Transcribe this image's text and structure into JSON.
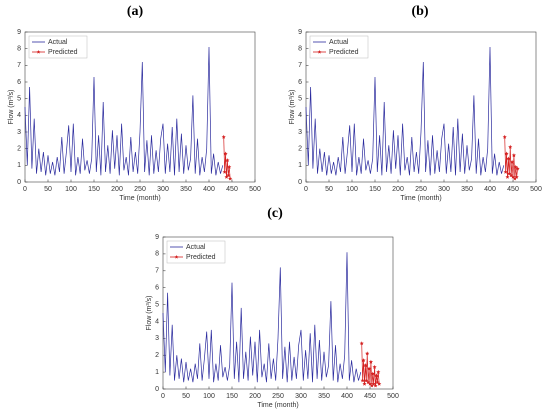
{
  "chart_data": [
    {
      "type": "line",
      "title": "(a)",
      "xlabel": "Time (month)",
      "ylabel": "Flow (m³/s)",
      "xlim": [
        0,
        500
      ],
      "xticks": [
        0,
        50,
        100,
        150,
        200,
        250,
        300,
        350,
        400,
        450,
        500
      ],
      "ylim": [
        0,
        9
      ],
      "yticks": [
        0,
        1,
        2,
        3,
        4,
        5,
        6,
        7,
        8,
        9
      ],
      "legend": "upper left",
      "series": [
        {
          "name": "Actual",
          "color": "#2b2b9e",
          "x": [
            0,
            5,
            10,
            15,
            20,
            25,
            30,
            35,
            40,
            45,
            50,
            55,
            60,
            65,
            70,
            75,
            80,
            85,
            90,
            95,
            100,
            105,
            110,
            115,
            120,
            125,
            130,
            135,
            140,
            145,
            150,
            155,
            160,
            165,
            170,
            175,
            180,
            185,
            190,
            195,
            200,
            205,
            210,
            215,
            220,
            225,
            230,
            235,
            240,
            245,
            250,
            255,
            260,
            265,
            270,
            275,
            280,
            285,
            290,
            295,
            300,
            305,
            310,
            315,
            320,
            325,
            330,
            335,
            340,
            345,
            350,
            355,
            360,
            365,
            370,
            375,
            380,
            385,
            390,
            395,
            400,
            405,
            410,
            415,
            420,
            425,
            430
          ],
          "values": [
            4.5,
            1.0,
            5.7,
            0.8,
            3.8,
            0.5,
            2.0,
            0.6,
            1.8,
            0.4,
            1.6,
            0.5,
            1.2,
            0.4,
            1.5,
            0.6,
            2.7,
            0.5,
            1.8,
            3.4,
            0.6,
            3.5,
            0.4,
            1.5,
            0.5,
            2.6,
            0.7,
            1.3,
            0.5,
            1.4,
            6.3,
            0.6,
            2.8,
            0.4,
            4.8,
            0.6,
            2.2,
            0.5,
            3.1,
            0.8,
            2.8,
            0.4,
            3.5,
            0.7,
            1.5,
            0.4,
            2.7,
            0.6,
            1.8,
            0.5,
            3.0,
            7.2,
            0.6,
            2.5,
            0.4,
            2.8,
            0.5,
            1.9,
            0.6,
            2.6,
            3.5,
            0.5,
            2.3,
            0.6,
            3.3,
            0.4,
            3.8,
            0.6,
            2.9,
            0.5,
            2.2,
            0.7,
            1.4,
            5.2,
            0.5,
            2.6,
            0.4,
            1.5,
            0.6,
            2.0,
            8.1,
            0.5,
            1.7,
            0.4,
            1.2,
            0.5,
            1.0
          ]
        },
        {
          "name": "Predicted",
          "color": "#d42020",
          "x": [
            432,
            434,
            436,
            438,
            440,
            442,
            444,
            446
          ],
          "values": [
            2.7,
            0.6,
            1.7,
            0.3,
            1.3,
            0.4,
            0.9,
            0.2
          ]
        }
      ]
    },
    {
      "type": "line",
      "title": "(b)",
      "xlabel": "Time (month)",
      "ylabel": "Flow (m³/s)",
      "xlim": [
        0,
        500
      ],
      "xticks": [
        0,
        50,
        100,
        150,
        200,
        250,
        300,
        350,
        400,
        450,
        500
      ],
      "ylim": [
        0,
        9
      ],
      "yticks": [
        0,
        1,
        2,
        3,
        4,
        5,
        6,
        7,
        8,
        9
      ],
      "legend": "upper left",
      "series": [
        {
          "name": "Actual",
          "color": "#2b2b9e",
          "x": [
            0,
            5,
            10,
            15,
            20,
            25,
            30,
            35,
            40,
            45,
            50,
            55,
            60,
            65,
            70,
            75,
            80,
            85,
            90,
            95,
            100,
            105,
            110,
            115,
            120,
            125,
            130,
            135,
            140,
            145,
            150,
            155,
            160,
            165,
            170,
            175,
            180,
            185,
            190,
            195,
            200,
            205,
            210,
            215,
            220,
            225,
            230,
            235,
            240,
            245,
            250,
            255,
            260,
            265,
            270,
            275,
            280,
            285,
            290,
            295,
            300,
            305,
            310,
            315,
            320,
            325,
            330,
            335,
            340,
            345,
            350,
            355,
            360,
            365,
            370,
            375,
            380,
            385,
            390,
            395,
            400,
            405,
            410,
            415,
            420,
            425,
            430
          ],
          "values": [
            4.5,
            1.0,
            5.7,
            0.8,
            3.8,
            0.5,
            2.0,
            0.6,
            1.8,
            0.4,
            1.6,
            0.5,
            1.2,
            0.4,
            1.5,
            0.6,
            2.7,
            0.5,
            1.8,
            3.4,
            0.6,
            3.5,
            0.4,
            1.5,
            0.5,
            2.6,
            0.7,
            1.3,
            0.5,
            1.4,
            6.3,
            0.6,
            2.8,
            0.4,
            4.8,
            0.6,
            2.2,
            0.5,
            3.1,
            0.8,
            2.8,
            0.4,
            3.5,
            0.7,
            1.5,
            0.4,
            2.7,
            0.6,
            1.8,
            0.5,
            3.0,
            7.2,
            0.6,
            2.5,
            0.4,
            2.8,
            0.5,
            1.9,
            0.6,
            2.6,
            3.5,
            0.5,
            2.3,
            0.6,
            3.3,
            0.4,
            3.8,
            0.6,
            2.9,
            0.5,
            2.2,
            0.7,
            1.4,
            5.2,
            0.5,
            2.6,
            0.4,
            1.5,
            0.6,
            2.0,
            8.1,
            0.5,
            1.7,
            0.4,
            1.2,
            0.5,
            1.0
          ]
        },
        {
          "name": "Predicted",
          "color": "#d42020",
          "x": [
            432,
            434,
            436,
            438,
            440,
            442,
            444,
            446,
            448,
            450,
            452,
            454,
            456,
            458,
            460
          ],
          "values": [
            2.7,
            0.6,
            1.7,
            0.3,
            1.4,
            0.5,
            2.1,
            0.4,
            1.2,
            0.3,
            1.6,
            0.2,
            0.9,
            0.3,
            0.8
          ]
        }
      ]
    },
    {
      "type": "line",
      "title": "(c)",
      "xlabel": "Time (month)",
      "ylabel": "Flow (m³/s)",
      "xlim": [
        0,
        500
      ],
      "xticks": [
        0,
        50,
        100,
        150,
        200,
        250,
        300,
        350,
        400,
        450,
        500
      ],
      "ylim": [
        0,
        9
      ],
      "yticks": [
        0,
        1,
        2,
        3,
        4,
        5,
        6,
        7,
        8,
        9
      ],
      "legend": "upper left",
      "series": [
        {
          "name": "Actual",
          "color": "#2b2b9e",
          "x": [
            0,
            5,
            10,
            15,
            20,
            25,
            30,
            35,
            40,
            45,
            50,
            55,
            60,
            65,
            70,
            75,
            80,
            85,
            90,
            95,
            100,
            105,
            110,
            115,
            120,
            125,
            130,
            135,
            140,
            145,
            150,
            155,
            160,
            165,
            170,
            175,
            180,
            185,
            190,
            195,
            200,
            205,
            210,
            215,
            220,
            225,
            230,
            235,
            240,
            245,
            250,
            255,
            260,
            265,
            270,
            275,
            280,
            285,
            290,
            295,
            300,
            305,
            310,
            315,
            320,
            325,
            330,
            335,
            340,
            345,
            350,
            355,
            360,
            365,
            370,
            375,
            380,
            385,
            390,
            395,
            400,
            405,
            410,
            415,
            420,
            425,
            430
          ],
          "values": [
            4.5,
            1.0,
            5.7,
            0.8,
            3.8,
            0.5,
            2.0,
            0.6,
            1.8,
            0.4,
            1.6,
            0.5,
            1.2,
            0.4,
            1.5,
            0.6,
            2.7,
            0.5,
            1.8,
            3.4,
            0.6,
            3.5,
            0.4,
            1.5,
            0.5,
            2.6,
            0.7,
            1.3,
            0.5,
            1.4,
            6.3,
            0.6,
            2.8,
            0.4,
            4.8,
            0.6,
            2.2,
            0.5,
            3.1,
            0.8,
            2.8,
            0.4,
            3.5,
            0.7,
            1.5,
            0.4,
            2.7,
            0.6,
            1.8,
            0.5,
            3.0,
            7.2,
            0.6,
            2.5,
            0.4,
            2.8,
            0.5,
            1.9,
            0.6,
            2.6,
            3.5,
            0.5,
            2.3,
            0.6,
            3.3,
            0.4,
            3.8,
            0.6,
            2.9,
            0.5,
            2.2,
            0.7,
            1.4,
            5.2,
            0.5,
            2.6,
            0.4,
            1.5,
            0.6,
            2.0,
            8.1,
            0.5,
            1.7,
            0.4,
            1.2,
            0.5,
            1.0
          ]
        },
        {
          "name": "Predicted",
          "color": "#d42020",
          "x": [
            432,
            434,
            436,
            438,
            440,
            442,
            444,
            446,
            448,
            450,
            452,
            454,
            456,
            458,
            460,
            462,
            464,
            466,
            468,
            470
          ],
          "values": [
            2.7,
            0.5,
            1.7,
            0.3,
            1.4,
            0.5,
            2.1,
            0.4,
            1.2,
            0.3,
            1.6,
            0.2,
            0.9,
            0.3,
            1.3,
            0.2,
            0.8,
            0.4,
            1.0,
            0.3
          ]
        }
      ]
    }
  ]
}
